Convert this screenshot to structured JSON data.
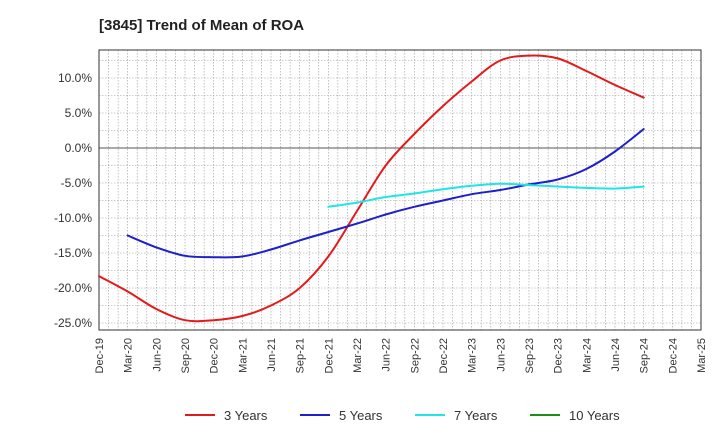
{
  "chart_data": {
    "type": "line",
    "title": "[3845]  Trend of Mean of ROA",
    "xlabel": "",
    "ylabel": "",
    "ylim": [
      -26,
      14
    ],
    "y_ticks": [
      10,
      5,
      0,
      -5,
      -10,
      -15,
      -20,
      -25
    ],
    "y_tick_labels": [
      "10.0%",
      "5.0%",
      "0.0%",
      "-5.0%",
      "-10.0%",
      "-15.0%",
      "-20.0%",
      "-25.0%"
    ],
    "x_ticks": [
      "Dec-19",
      "Mar-20",
      "Jun-20",
      "Sep-20",
      "Dec-20",
      "Mar-21",
      "Jun-21",
      "Sep-21",
      "Dec-21",
      "Mar-22",
      "Jun-22",
      "Sep-22",
      "Dec-22",
      "Mar-23",
      "Jun-23",
      "Sep-23",
      "Dec-23",
      "Mar-24",
      "Jun-24",
      "Sep-24",
      "Dec-24",
      "Mar-25"
    ],
    "grid": true,
    "legend_position": "bottom",
    "series": [
      {
        "name": "3 Years",
        "color": "#e31a1c",
        "values": [
          -18.3,
          -20.5,
          -23.0,
          -24.6,
          -24.6,
          -24.0,
          -22.5,
          -20.0,
          -15.5,
          -9.0,
          -2.5,
          2.0,
          6.0,
          9.5,
          12.5,
          13.2,
          12.8,
          11.0,
          9.0,
          7.2
        ]
      },
      {
        "name": "5 Years",
        "color": "#1f1fcc",
        "values": [
          null,
          -12.5,
          -14.2,
          -15.4,
          -15.6,
          -15.5,
          -14.5,
          -13.2,
          -12.0,
          -10.8,
          -9.5,
          -8.4,
          -7.5,
          -6.6,
          -6.0,
          -5.2,
          -4.5,
          -3.0,
          -0.5,
          2.7
        ]
      },
      {
        "name": "7 Years",
        "color": "#20e5e5",
        "values": [
          null,
          null,
          null,
          null,
          null,
          null,
          null,
          null,
          -8.4,
          -7.8,
          -7.0,
          -6.5,
          -5.9,
          -5.4,
          -5.1,
          -5.3,
          -5.5,
          -5.7,
          -5.8,
          -5.5
        ]
      },
      {
        "name": "10 Years",
        "color": "#1a8f1a",
        "values": []
      }
    ]
  }
}
